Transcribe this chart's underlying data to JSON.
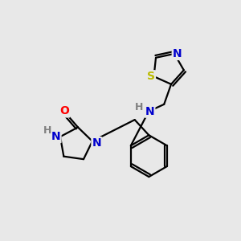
{
  "bg_color": "#e8e8e8",
  "bond_color": "#000000",
  "atom_colors": {
    "N": "#0000cc",
    "O": "#ff0000",
    "S": "#bbbb00",
    "H": "#808080",
    "C": "#000000"
  },
  "lw": 1.6,
  "fs": 9.5
}
